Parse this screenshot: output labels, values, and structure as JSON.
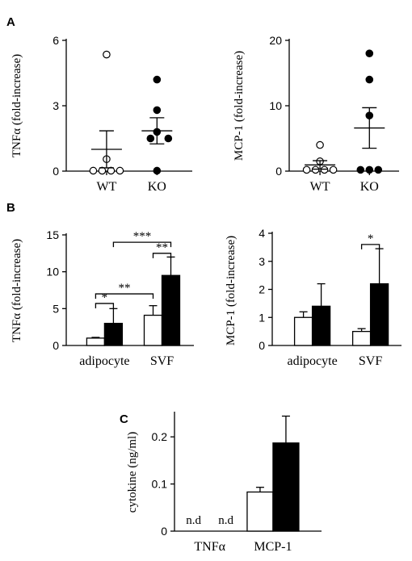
{
  "panel_labels": {
    "a": "A",
    "b": "B",
    "c": "C"
  },
  "chart_data": [
    {
      "id": "A-left",
      "type": "scatter",
      "categories": [
        "WT",
        "KO"
      ],
      "ylabel": "TNFα (fold-increase)",
      "ylim": [
        0,
        6
      ],
      "yticks": [
        0,
        3,
        6
      ],
      "points": [
        {
          "category": "WT",
          "fill": "open",
          "values": [
            5.35,
            0.55,
            0.02,
            0.02,
            0.02,
            0.02
          ]
        },
        {
          "category": "KO",
          "fill": "filled",
          "values": [
            4.2,
            2.8,
            1.8,
            1.5,
            1.5,
            0.02
          ]
        }
      ],
      "mean": [
        1.0,
        1.85
      ],
      "sem": [
        0.85,
        0.6
      ]
    },
    {
      "id": "A-right",
      "type": "scatter",
      "categories": [
        "WT",
        "KO"
      ],
      "ylabel": "MCP-1 (fold-increase)",
      "ylim": [
        0,
        20
      ],
      "yticks": [
        0,
        10,
        20
      ],
      "points": [
        {
          "category": "WT",
          "fill": "open",
          "values": [
            4.0,
            1.5,
            0.2,
            0.2,
            0.2,
            0.2
          ]
        },
        {
          "category": "KO",
          "fill": "filled",
          "values": [
            18.0,
            14.0,
            8.5,
            0.2,
            0.2,
            0.2
          ]
        }
      ],
      "mean": [
        0.95,
        6.6
      ],
      "sem": [
        0.65,
        3.1
      ]
    },
    {
      "id": "B-left",
      "type": "bar",
      "categories": [
        "adipocyte",
        "SVF"
      ],
      "ylabel": "TNFα (fold-increase)",
      "ylim": [
        0,
        15
      ],
      "yticks": [
        0,
        5,
        10,
        15
      ],
      "series": [
        {
          "fill": "open",
          "values": [
            1.0,
            4.1
          ],
          "err": [
            0.1,
            1.3
          ]
        },
        {
          "fill": "filled",
          "values": [
            3.0,
            9.5
          ],
          "err": [
            2.0,
            2.5
          ]
        }
      ],
      "significance": [
        {
          "label": "*",
          "from": [
            0,
            0
          ],
          "to": [
            0,
            1
          ],
          "y": 5.7
        },
        {
          "label": "**",
          "from": [
            0,
            0
          ],
          "to": [
            1,
            0
          ],
          "y": 7.0
        },
        {
          "label": "**",
          "from": [
            1,
            0
          ],
          "to": [
            1,
            1
          ],
          "y": 12.5
        },
        {
          "label": "***",
          "from": [
            0,
            1
          ],
          "to": [
            1,
            1
          ],
          "y": 14.0
        }
      ]
    },
    {
      "id": "B-right",
      "type": "bar",
      "categories": [
        "adipocyte",
        "SVF"
      ],
      "ylabel": "MCP-1 (fold-increase)",
      "ylim": [
        0,
        4
      ],
      "yticks": [
        0,
        1,
        2,
        3,
        4
      ],
      "series": [
        {
          "fill": "open",
          "values": [
            1.0,
            0.5
          ],
          "err": [
            0.2,
            0.1
          ]
        },
        {
          "fill": "filled",
          "values": [
            1.4,
            2.2
          ],
          "err": [
            0.8,
            1.25
          ]
        }
      ],
      "significance": [
        {
          "label": "*",
          "from": [
            1,
            0
          ],
          "to": [
            1,
            1
          ],
          "y": 3.6
        }
      ]
    },
    {
      "id": "C",
      "type": "bar",
      "categories": [
        "TNFα",
        "MCP-1"
      ],
      "ylabel": "cytokine (ng/ml)",
      "ylim": [
        0,
        0.25
      ],
      "yticks": [
        0,
        0.1,
        0.2
      ],
      "series": [
        {
          "fill": "open",
          "values": [
            null,
            0.083
          ],
          "err": [
            null,
            0.01
          ]
        },
        {
          "fill": "filled",
          "values": [
            null,
            0.187
          ],
          "err": [
            null,
            0.057
          ]
        }
      ],
      "na_label": "n.d"
    }
  ]
}
